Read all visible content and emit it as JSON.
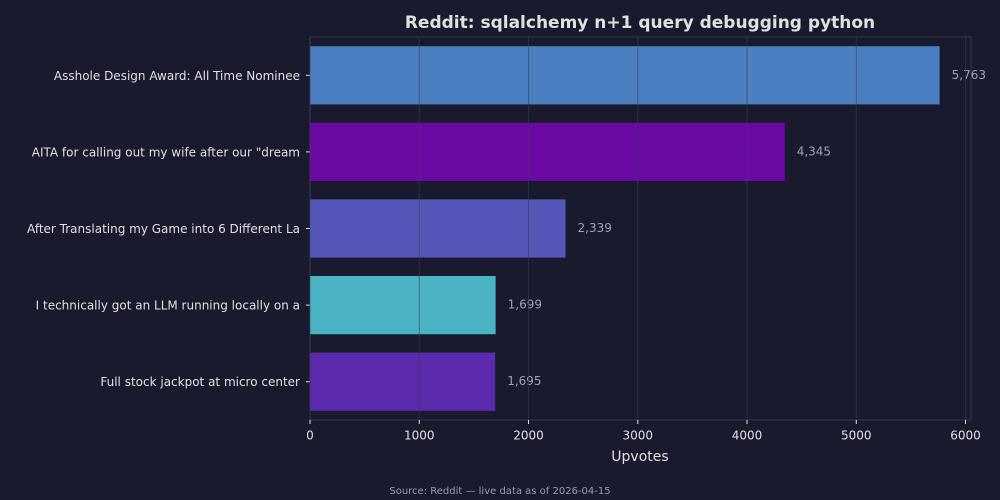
{
  "chart_data": {
    "type": "barh",
    "title": "Reddit: sqlalchemy n+1 query debugging python",
    "categories": [
      "Asshole Design Award: All Time Nominee",
      "AITA for calling out my wife after our \"dream",
      "After Translating my Game into 6 Different La",
      "I technically got an LLM running locally on a",
      "Full stock jackpot at micro center"
    ],
    "values": [
      5763,
      4345,
      2339,
      1699,
      1695
    ],
    "value_labels": [
      "5,763",
      "4,345",
      "2,339",
      "1,699",
      "1,695"
    ],
    "colors": [
      "#4a7fc1",
      "#6a0aa3",
      "#5557b8",
      "#4ab3c4",
      "#5c2aad"
    ],
    "xlim": [
      0,
      6050
    ],
    "xticks": [
      0,
      1000,
      2000,
      3000,
      4000,
      5000,
      6000
    ],
    "xlabel": "Upvotes",
    "grid": true,
    "source": "Source: Reddit — live data as of 2026-04-15"
  }
}
